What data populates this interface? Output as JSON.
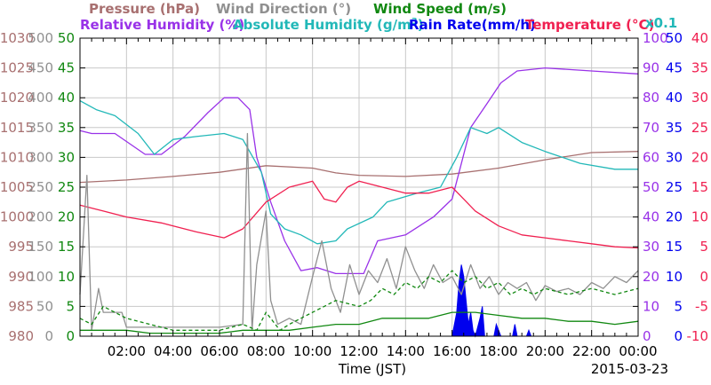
{
  "chart_data": {
    "type": "line",
    "legend_row1": [
      "Pressure (hPa)",
      "Wind Direction (°)",
      "Wind Speed (m/s)"
    ],
    "legend_row2": {
      "rh": "Relative Humidity (%)",
      "ah": "Absolute Humidity (g/m",
      "ah_sup": "3",
      "ah_close": ")",
      "rain": "Rain Rate(mm/h)",
      "temp": "Temperature (°C)",
      "rain_scale": "x0.1"
    },
    "xlabel": "Time (JST)",
    "date": "2015-03-23",
    "x_ticks": [
      "02:00",
      "04:00",
      "06:00",
      "08:00",
      "10:00",
      "12:00",
      "14:00",
      "16:00",
      "18:00",
      "20:00",
      "22:00",
      "00:00"
    ],
    "xlim_hours": [
      0,
      24
    ],
    "axes": {
      "pressure": {
        "range": [
          980,
          1030
        ],
        "ticks": [
          "1030",
          "1025",
          "1020",
          "1015",
          "1010",
          "1005",
          "1000",
          "995",
          "990",
          "985",
          "980"
        ]
      },
      "wind_dir": {
        "range": [
          0,
          500
        ],
        "ticks": [
          "500",
          "450",
          "400",
          "350",
          "300",
          "250",
          "200",
          "150",
          "100",
          "50",
          "0"
        ]
      },
      "wind_speed": {
        "range": [
          0,
          50
        ],
        "ticks": [
          "50",
          "45",
          "40",
          "35",
          "30",
          "25",
          "20",
          "15",
          "10",
          "5",
          "0"
        ]
      },
      "humidity": {
        "range": [
          0,
          100
        ],
        "ticks": [
          "100",
          "90",
          "80",
          "70",
          "60",
          "50",
          "40",
          "30",
          "20",
          "10",
          "0"
        ]
      },
      "rain": {
        "range": [
          0,
          50
        ],
        "ticks": [
          "50",
          "45",
          "40",
          "35",
          "30",
          "25",
          "20",
          "15",
          "10",
          "5",
          "0"
        ]
      },
      "temperature": {
        "range": [
          -10,
          40
        ],
        "ticks": [
          "40",
          "35",
          "30",
          "25",
          "20",
          "15",
          "10",
          "5",
          "0",
          "-5",
          "-10"
        ]
      }
    },
    "colors": {
      "pressure": "#a87070",
      "wind_dir": "#909090",
      "wind_speed": "#118811",
      "rh": "#9932e8",
      "ah": "#22b8b8",
      "rain": "#0000ee",
      "temp": "#f02050",
      "grid": "#c8c8c8"
    },
    "series": [
      {
        "key": "pressure",
        "axis": "pressure",
        "points": [
          [
            0,
            1005.8
          ],
          [
            2,
            1006.2
          ],
          [
            4,
            1006.8
          ],
          [
            6,
            1007.5
          ],
          [
            8,
            1008.6
          ],
          [
            10,
            1008.2
          ],
          [
            11,
            1007.4
          ],
          [
            12,
            1007.0
          ],
          [
            14,
            1006.8
          ],
          [
            16,
            1007.2
          ],
          [
            18,
            1008.2
          ],
          [
            20,
            1009.6
          ],
          [
            22,
            1010.8
          ],
          [
            24,
            1011.0
          ]
        ]
      },
      {
        "key": "rh",
        "axis": "humidity",
        "points": [
          [
            0,
            69
          ],
          [
            0.5,
            68
          ],
          [
            1.5,
            68
          ],
          [
            2.8,
            61
          ],
          [
            3.5,
            61
          ],
          [
            4.5,
            67
          ],
          [
            5.5,
            75
          ],
          [
            6.2,
            80
          ],
          [
            6.8,
            80
          ],
          [
            7.3,
            76
          ],
          [
            7.6,
            60
          ],
          [
            8.2,
            45
          ],
          [
            8.8,
            32
          ],
          [
            9.5,
            22
          ],
          [
            10.2,
            23
          ],
          [
            11,
            21
          ],
          [
            12.2,
            21
          ],
          [
            12.8,
            32
          ],
          [
            14,
            34
          ],
          [
            15.2,
            40
          ],
          [
            16,
            46
          ],
          [
            16.8,
            70
          ],
          [
            17.5,
            78
          ],
          [
            18.1,
            85
          ],
          [
            18.8,
            89
          ],
          [
            20,
            90
          ],
          [
            22,
            89
          ],
          [
            24,
            88
          ]
        ]
      },
      {
        "key": "ah",
        "axis": "humidity",
        "points": [
          [
            0,
            79
          ],
          [
            0.7,
            76
          ],
          [
            1.5,
            74
          ],
          [
            2.5,
            68
          ],
          [
            3.2,
            61
          ],
          [
            4,
            66
          ],
          [
            5,
            67
          ],
          [
            6.2,
            68
          ],
          [
            7,
            66
          ],
          [
            7.8,
            55
          ],
          [
            8.2,
            41
          ],
          [
            8.8,
            36
          ],
          [
            9.5,
            34
          ],
          [
            10.2,
            31
          ],
          [
            11,
            32
          ],
          [
            11.5,
            36
          ],
          [
            12.6,
            40
          ],
          [
            13.2,
            45
          ],
          [
            14.5,
            48
          ],
          [
            15.5,
            50
          ],
          [
            16.2,
            60
          ],
          [
            16.8,
            70
          ],
          [
            17.5,
            68
          ],
          [
            18,
            70
          ],
          [
            19,
            65
          ],
          [
            20,
            62
          ],
          [
            21.5,
            58
          ],
          [
            23,
            56
          ],
          [
            24,
            56
          ]
        ]
      },
      {
        "key": "temp",
        "axis": "temperature",
        "points": [
          [
            0,
            12
          ],
          [
            1,
            11
          ],
          [
            2,
            10
          ],
          [
            3.5,
            9
          ],
          [
            5,
            7.5
          ],
          [
            6.2,
            6.5
          ],
          [
            7,
            8
          ],
          [
            8,
            12.5
          ],
          [
            9,
            15
          ],
          [
            10,
            16
          ],
          [
            10.5,
            13
          ],
          [
            11,
            12.5
          ],
          [
            11.5,
            15
          ],
          [
            12,
            16
          ],
          [
            13,
            15
          ],
          [
            14,
            14
          ],
          [
            15,
            14
          ],
          [
            16,
            15
          ],
          [
            16.5,
            13
          ],
          [
            17,
            11
          ],
          [
            18,
            8.5
          ],
          [
            19,
            7
          ],
          [
            20,
            6.5
          ],
          [
            21,
            6
          ],
          [
            22,
            5.5
          ],
          [
            23,
            5
          ],
          [
            24,
            4.8
          ]
        ]
      },
      {
        "key": "wind_dir",
        "axis": "wind_dir",
        "points": [
          [
            0,
            70
          ],
          [
            0.3,
            270
          ],
          [
            0.5,
            10
          ],
          [
            0.8,
            80
          ],
          [
            1,
            40
          ],
          [
            1.8,
            40
          ],
          [
            2,
            15
          ],
          [
            3,
            15
          ],
          [
            4,
            15
          ],
          [
            5,
            15
          ],
          [
            6,
            15
          ],
          [
            7,
            20
          ],
          [
            7.2,
            340
          ],
          [
            7.4,
            10
          ],
          [
            7.6,
            120
          ],
          [
            8,
            210
          ],
          [
            8.2,
            60
          ],
          [
            8.5,
            20
          ],
          [
            9,
            30
          ],
          [
            9.5,
            20
          ],
          [
            10,
            100
          ],
          [
            10.4,
            160
          ],
          [
            10.8,
            80
          ],
          [
            11.2,
            40
          ],
          [
            11.6,
            120
          ],
          [
            12,
            70
          ],
          [
            12.4,
            110
          ],
          [
            12.8,
            90
          ],
          [
            13.2,
            130
          ],
          [
            13.6,
            80
          ],
          [
            14,
            150
          ],
          [
            14.4,
            110
          ],
          [
            14.8,
            80
          ],
          [
            15.2,
            120
          ],
          [
            15.6,
            90
          ],
          [
            16,
            100
          ],
          [
            16.4,
            70
          ],
          [
            16.8,
            120
          ],
          [
            17.2,
            80
          ],
          [
            17.6,
            100
          ],
          [
            18,
            70
          ],
          [
            18.4,
            90
          ],
          [
            18.8,
            80
          ],
          [
            19.2,
            90
          ],
          [
            19.6,
            60
          ],
          [
            20,
            85
          ],
          [
            20.5,
            75
          ],
          [
            21,
            80
          ],
          [
            21.5,
            70
          ],
          [
            22,
            90
          ],
          [
            22.5,
            80
          ],
          [
            23,
            100
          ],
          [
            23.5,
            90
          ],
          [
            24,
            110
          ]
        ]
      },
      {
        "key": "wind_speed",
        "axis": "wind_speed",
        "dashed": true,
        "points": [
          [
            0,
            3
          ],
          [
            0.5,
            2
          ],
          [
            1,
            5
          ],
          [
            2,
            3
          ],
          [
            3,
            2
          ],
          [
            4,
            1
          ],
          [
            5,
            1
          ],
          [
            6,
            1
          ],
          [
            7,
            2
          ],
          [
            7.6,
            1
          ],
          [
            8,
            4
          ],
          [
            8.6,
            1
          ],
          [
            9,
            2
          ],
          [
            9.5,
            3
          ],
          [
            10,
            4
          ],
          [
            10.5,
            5
          ],
          [
            11,
            6
          ],
          [
            12,
            5
          ],
          [
            12.5,
            6
          ],
          [
            13,
            8
          ],
          [
            13.5,
            7
          ],
          [
            14,
            9
          ],
          [
            14.5,
            8
          ],
          [
            15,
            10
          ],
          [
            15.5,
            9
          ],
          [
            16,
            11
          ],
          [
            16.5,
            9
          ],
          [
            17,
            10
          ],
          [
            17.5,
            8
          ],
          [
            18,
            9
          ],
          [
            18.5,
            7
          ],
          [
            19,
            8
          ],
          [
            19.5,
            7
          ],
          [
            20,
            8
          ],
          [
            21,
            7
          ],
          [
            22,
            8
          ],
          [
            23,
            7
          ],
          [
            24,
            8
          ]
        ]
      },
      {
        "key": "wind_speed",
        "axis": "wind_speed",
        "dashed": false,
        "points": [
          [
            0,
            1
          ],
          [
            1,
            1
          ],
          [
            2,
            1
          ],
          [
            3,
            0.5
          ],
          [
            4,
            0.5
          ],
          [
            5,
            0.5
          ],
          [
            6,
            0.5
          ],
          [
            7,
            1
          ],
          [
            8,
            1
          ],
          [
            9,
            1
          ],
          [
            10,
            1.5
          ],
          [
            11,
            2
          ],
          [
            12,
            2
          ],
          [
            13,
            3
          ],
          [
            14,
            3
          ],
          [
            15,
            3
          ],
          [
            16,
            4
          ],
          [
            17,
            4
          ],
          [
            18,
            3.5
          ],
          [
            19,
            3
          ],
          [
            20,
            3
          ],
          [
            21,
            2.5
          ],
          [
            22,
            2.5
          ],
          [
            23,
            2
          ],
          [
            24,
            2.5
          ]
        ]
      }
    ],
    "rain_series": {
      "axis": "rain",
      "points": [
        [
          16.0,
          0
        ],
        [
          16.2,
          4
        ],
        [
          16.3,
          9
        ],
        [
          16.4,
          12
        ],
        [
          16.5,
          10
        ],
        [
          16.6,
          6
        ],
        [
          16.7,
          2
        ],
        [
          16.8,
          4
        ],
        [
          16.9,
          1
        ],
        [
          17.0,
          0
        ],
        [
          17.2,
          3
        ],
        [
          17.3,
          5
        ],
        [
          17.4,
          0
        ],
        [
          17.8,
          0
        ],
        [
          17.9,
          2
        ],
        [
          18.0,
          1
        ],
        [
          18.1,
          0
        ],
        [
          18.6,
          0
        ],
        [
          18.7,
          2
        ],
        [
          18.8,
          0
        ],
        [
          19.2,
          0
        ],
        [
          19.3,
          1
        ],
        [
          19.4,
          0
        ]
      ]
    }
  }
}
